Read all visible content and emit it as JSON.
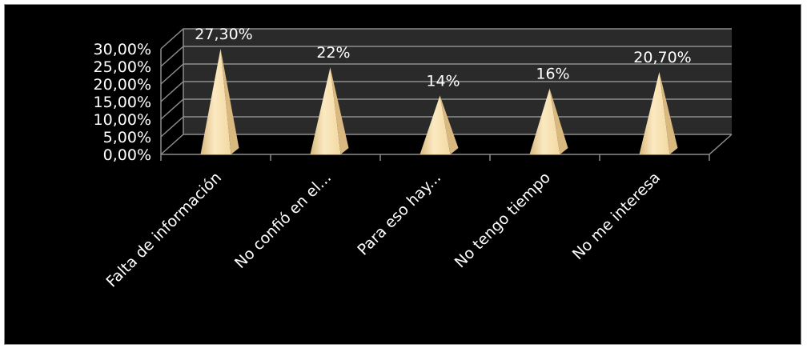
{
  "chart_data": {
    "type": "bar",
    "bar_shape": "pyramid",
    "categories": [
      "Falta de información",
      "No confió en el...",
      "Para eso hay...",
      "No tengo tiempo",
      "No me interesa"
    ],
    "values": [
      27.3,
      22,
      14,
      16,
      20.7
    ],
    "data_labels": [
      "27,30%",
      "22%",
      "14%",
      "16%",
      "20,70%"
    ],
    "y_ticks": [
      0,
      5,
      10,
      15,
      20,
      25,
      30
    ],
    "y_tick_labels": [
      "0,00%",
      "5,00%",
      "10,00%",
      "15,00%",
      "20,00%",
      "25,00%",
      "30,00%"
    ],
    "ylim": [
      0,
      30
    ],
    "grid": true,
    "legend": "none"
  },
  "colors": {
    "background": "#000000",
    "gridline": "#8c8c8c",
    "back_wall": "#2a2a2a",
    "bar_light": "#fbe9c2",
    "bar_shade": "#d9b97f",
    "text": "#ffffff"
  }
}
